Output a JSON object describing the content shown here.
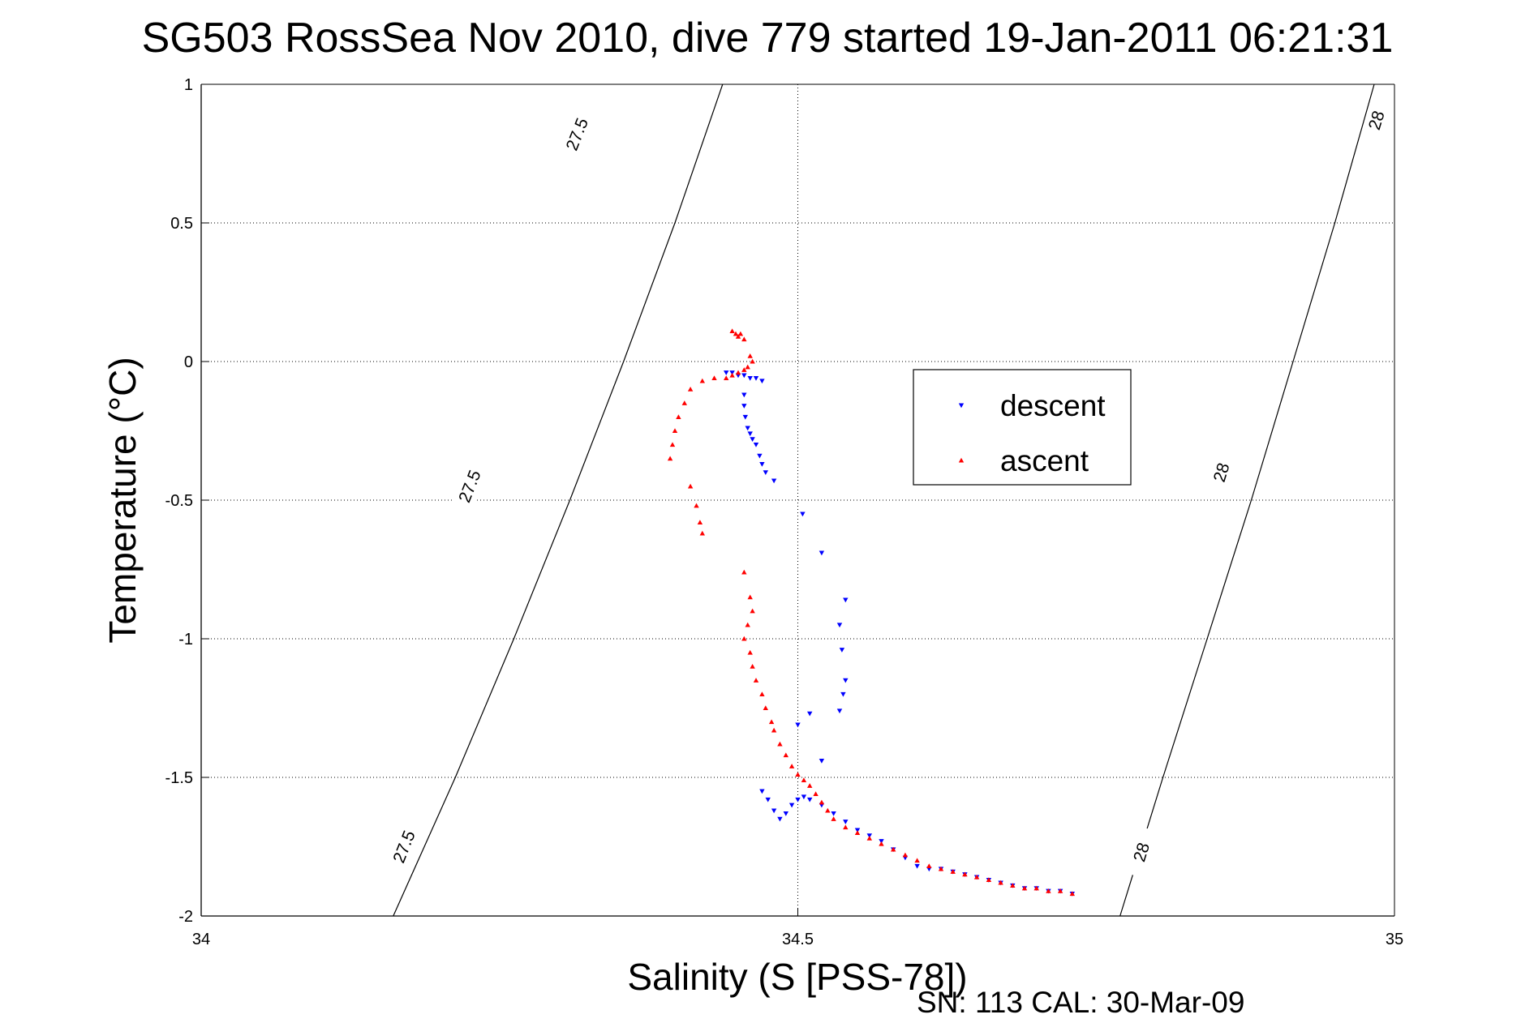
{
  "chart_data": {
    "type": "scatter",
    "title": "SG503 RossSea Nov 2010, dive 779 started 19-Jan-2011 06:21:31",
    "xlabel": "Salinity (S [PSS-78])",
    "ylabel": "Temperature (°C)",
    "xlim": [
      34,
      35
    ],
    "ylim": [
      -2,
      1
    ],
    "xticks": [
      34,
      34.5,
      35
    ],
    "xtick_labels": [
      "34",
      "34.5",
      "35"
    ],
    "yticks": [
      1,
      0.5,
      0,
      -0.5,
      -1,
      -1.5,
      -2
    ],
    "ytick_labels": [
      "1",
      "0.5",
      "0",
      "-0.5",
      "-1",
      "-1.5",
      "-2"
    ],
    "grid": true,
    "legend_position": "upper-right",
    "note": "SN: 113  CAL: 30-Mar-09",
    "series": [
      {
        "name": "descent",
        "color": "#0000ff",
        "marker": "triangle-down",
        "points": [
          [
            34.44,
            -0.04
          ],
          [
            34.445,
            -0.04
          ],
          [
            34.45,
            -0.05
          ],
          [
            34.455,
            -0.05
          ],
          [
            34.46,
            -0.06
          ],
          [
            34.465,
            -0.06
          ],
          [
            34.47,
            -0.07
          ],
          [
            34.455,
            -0.12
          ],
          [
            34.455,
            -0.16
          ],
          [
            34.456,
            -0.2
          ],
          [
            34.458,
            -0.24
          ],
          [
            34.46,
            -0.26
          ],
          [
            34.462,
            -0.28
          ],
          [
            34.465,
            -0.3
          ],
          [
            34.468,
            -0.34
          ],
          [
            34.47,
            -0.37
          ],
          [
            34.473,
            -0.4
          ],
          [
            34.48,
            -0.43
          ],
          [
            34.504,
            -0.55
          ],
          [
            34.52,
            -0.69
          ],
          [
            34.54,
            -0.86
          ],
          [
            34.535,
            -0.95
          ],
          [
            34.537,
            -1.04
          ],
          [
            34.54,
            -1.15
          ],
          [
            34.538,
            -1.2
          ],
          [
            34.535,
            -1.26
          ],
          [
            34.51,
            -1.27
          ],
          [
            34.5,
            -1.31
          ],
          [
            34.52,
            -1.44
          ],
          [
            34.47,
            -1.55
          ],
          [
            34.475,
            -1.58
          ],
          [
            34.48,
            -1.62
          ],
          [
            34.485,
            -1.65
          ],
          [
            34.49,
            -1.63
          ],
          [
            34.495,
            -1.6
          ],
          [
            34.5,
            -1.58
          ],
          [
            34.505,
            -1.57
          ],
          [
            34.51,
            -1.58
          ],
          [
            34.52,
            -1.6
          ],
          [
            34.53,
            -1.63
          ],
          [
            34.54,
            -1.66
          ],
          [
            34.55,
            -1.69
          ],
          [
            34.56,
            -1.71
          ],
          [
            34.57,
            -1.73
          ],
          [
            34.58,
            -1.76
          ],
          [
            34.59,
            -1.79
          ],
          [
            34.6,
            -1.82
          ],
          [
            34.61,
            -1.83
          ],
          [
            34.62,
            -1.83
          ],
          [
            34.63,
            -1.84
          ],
          [
            34.64,
            -1.85
          ],
          [
            34.65,
            -1.86
          ],
          [
            34.66,
            -1.87
          ],
          [
            34.67,
            -1.88
          ],
          [
            34.68,
            -1.89
          ],
          [
            34.69,
            -1.9
          ],
          [
            34.7,
            -1.9
          ],
          [
            34.71,
            -1.91
          ],
          [
            34.72,
            -1.91
          ],
          [
            34.73,
            -1.92
          ]
        ]
      },
      {
        "name": "ascent",
        "color": "#ff0000",
        "marker": "triangle-up",
        "points": [
          [
            34.445,
            0.11
          ],
          [
            34.448,
            0.1
          ],
          [
            34.45,
            0.09
          ],
          [
            34.452,
            0.1
          ],
          [
            34.455,
            0.08
          ],
          [
            34.46,
            0.02
          ],
          [
            34.462,
            0.0
          ],
          [
            34.458,
            -0.02
          ],
          [
            34.455,
            -0.03
          ],
          [
            34.45,
            -0.04
          ],
          [
            34.445,
            -0.05
          ],
          [
            34.44,
            -0.06
          ],
          [
            34.43,
            -0.06
          ],
          [
            34.42,
            -0.07
          ],
          [
            34.41,
            -0.1
          ],
          [
            34.405,
            -0.15
          ],
          [
            34.4,
            -0.2
          ],
          [
            34.397,
            -0.25
          ],
          [
            34.395,
            -0.3
          ],
          [
            34.393,
            -0.35
          ],
          [
            34.41,
            -0.45
          ],
          [
            34.415,
            -0.52
          ],
          [
            34.418,
            -0.58
          ],
          [
            34.42,
            -0.62
          ],
          [
            34.455,
            -0.76
          ],
          [
            34.46,
            -0.85
          ],
          [
            34.462,
            -0.9
          ],
          [
            34.458,
            -0.95
          ],
          [
            34.455,
            -1.0
          ],
          [
            34.46,
            -1.05
          ],
          [
            34.462,
            -1.1
          ],
          [
            34.465,
            -1.15
          ],
          [
            34.47,
            -1.2
          ],
          [
            34.473,
            -1.25
          ],
          [
            34.478,
            -1.3
          ],
          [
            34.48,
            -1.33
          ],
          [
            34.485,
            -1.38
          ],
          [
            34.49,
            -1.42
          ],
          [
            34.495,
            -1.46
          ],
          [
            34.5,
            -1.49
          ],
          [
            34.505,
            -1.51
          ],
          [
            34.51,
            -1.53
          ],
          [
            34.515,
            -1.56
          ],
          [
            34.52,
            -1.59
          ],
          [
            34.525,
            -1.62
          ],
          [
            34.53,
            -1.65
          ],
          [
            34.54,
            -1.68
          ],
          [
            34.55,
            -1.7
          ],
          [
            34.56,
            -1.72
          ],
          [
            34.57,
            -1.74
          ],
          [
            34.58,
            -1.76
          ],
          [
            34.59,
            -1.78
          ],
          [
            34.6,
            -1.8
          ],
          [
            34.61,
            -1.82
          ],
          [
            34.62,
            -1.83
          ],
          [
            34.63,
            -1.84
          ],
          [
            34.64,
            -1.85
          ],
          [
            34.65,
            -1.86
          ],
          [
            34.66,
            -1.87
          ],
          [
            34.67,
            -1.88
          ],
          [
            34.68,
            -1.89
          ],
          [
            34.69,
            -1.9
          ],
          [
            34.7,
            -1.9
          ],
          [
            34.71,
            -1.91
          ],
          [
            34.72,
            -1.91
          ],
          [
            34.73,
            -1.92
          ]
        ]
      }
    ],
    "contours": [
      {
        "value_label": "27.5",
        "path": [
          [
            34.161,
            -2
          ],
          [
            34.213,
            -1.5
          ],
          [
            34.262,
            -1
          ],
          [
            34.309,
            -0.5
          ],
          [
            34.354,
            0
          ],
          [
            34.397,
            0.5
          ],
          [
            34.437,
            1
          ]
        ],
        "label_positions": [
          [
            34.17,
            -1.75
          ],
          [
            34.225,
            -0.45
          ],
          [
            34.315,
            0.82
          ]
        ]
      },
      {
        "value_label": "28",
        "path": [
          [
            34.77,
            -2
          ],
          [
            34.806,
            -1.5
          ],
          [
            34.843,
            -1
          ],
          [
            34.88,
            -0.5
          ],
          [
            34.915,
            0
          ],
          [
            34.95,
            0.5
          ],
          [
            34.983,
            1
          ]
        ],
        "label_positions": [
          [
            34.788,
            -1.77
          ],
          [
            34.855,
            -0.4
          ],
          [
            34.985,
            0.87
          ]
        ]
      }
    ]
  }
}
